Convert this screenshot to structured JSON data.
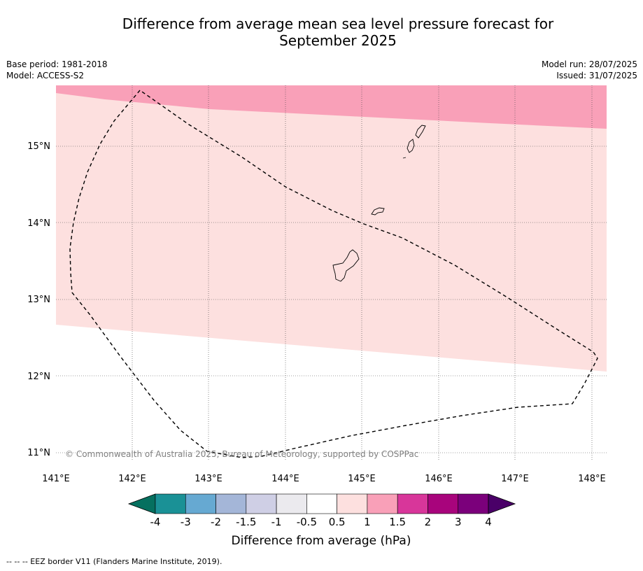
{
  "header": {
    "title_line1": "Difference from average mean sea level pressure forecast for",
    "title_line2": "September 2025",
    "base_period": "Base period: 1981-2018",
    "model": "Model: ACCESS-S2",
    "model_run": "Model run: 28/07/2025",
    "issued": "Issued: 31/07/2025"
  },
  "map": {
    "lat_labels": [
      "15°N",
      "14°N",
      "13°N",
      "12°N",
      "11°N"
    ],
    "lon_labels": [
      "141°E",
      "142°E",
      "143°E",
      "144°E",
      "145°E",
      "146°E",
      "147°E",
      "148°E"
    ],
    "copyright": "© Commonwealth of Australia 2025, Bureau of Meteorology, supported by COSPPac",
    "fill_colors": {
      "band_0_5_to_1": "#fde0df",
      "band_1_to_1_5": "#f9a0b8",
      "none": "#ffffff"
    }
  },
  "colorbar": {
    "ticks": [
      "-4",
      "-3",
      "-2",
      "-1.5",
      "-1",
      "-0.5",
      "0.5",
      "1",
      "1.5",
      "2",
      "3",
      "4"
    ],
    "colors": [
      "#05705f",
      "#1a9196",
      "#66a9d2",
      "#a4b6d8",
      "#cfcfe5",
      "#ebeaee",
      "#ffffff",
      "#fde0df",
      "#f9a0b8",
      "#d8369a",
      "#a8047c",
      "#7b007b",
      "#4a0068"
    ],
    "label": "Difference from average (hPa)"
  },
  "footer": {
    "legend": "--  --  -- EEZ border V11 (Flanders Marine Institute, 2019)."
  }
}
